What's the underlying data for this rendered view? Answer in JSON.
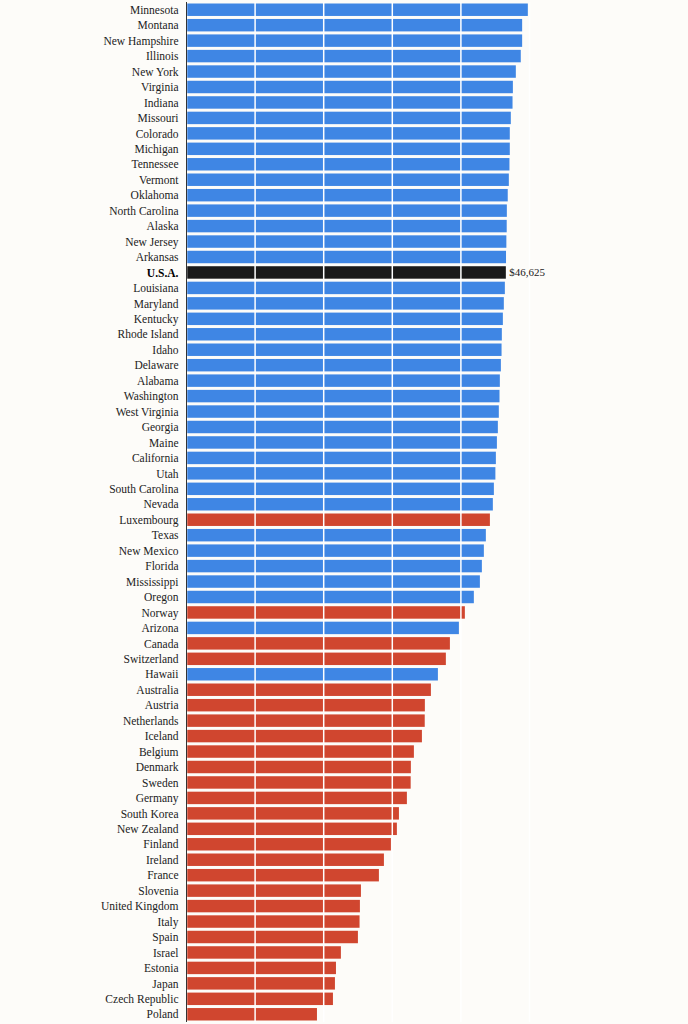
{
  "chart_data": {
    "type": "bar",
    "orientation": "horizontal",
    "categories": [
      "Minnesota",
      "Montana",
      "New Hampshire",
      "Illinois",
      "New York",
      "Virginia",
      "Indiana",
      "Missouri",
      "Colorado",
      "Michigan",
      "Tennessee",
      "Vermont",
      "Oklahoma",
      "North Carolina",
      "Alaska",
      "New Jersey",
      "Arkansas",
      "U.S.A.",
      "Louisiana",
      "Maryland",
      "Kentucky",
      "Rhode Island",
      "Idaho",
      "Delaware",
      "Alabama",
      "Washington",
      "West Virginia",
      "Georgia",
      "Maine",
      "California",
      "Utah",
      "South Carolina",
      "Nevada",
      "Luxembourg",
      "Texas",
      "New Mexico",
      "Florida",
      "Mississippi",
      "Oregon",
      "Norway",
      "Arizona",
      "Canada",
      "Switzerland",
      "Hawaii",
      "Australia",
      "Austria",
      "Netherlands",
      "Iceland",
      "Belgium",
      "Denmark",
      "Sweden",
      "Germany",
      "South Korea",
      "New Zealand",
      "Finland",
      "Ireland",
      "France",
      "Slovenia",
      "United Kingdom",
      "Italy",
      "Spain",
      "Israel",
      "Estonia",
      "Japan",
      "Czech Republic",
      "Poland"
    ],
    "values": [
      49830,
      49000,
      49000,
      48800,
      48080,
      47650,
      47600,
      47350,
      47200,
      47200,
      47150,
      47060,
      46900,
      46770,
      46750,
      46700,
      46650,
      46625,
      46480,
      46330,
      46190,
      46040,
      46000,
      45900,
      45750,
      45700,
      45600,
      45460,
      45320,
      45170,
      45100,
      44880,
      44730,
      44300,
      43710,
      43420,
      43130,
      42840,
      41960,
      40650,
      39780,
      38470,
      37880,
      36720,
      35700,
      34820,
      34800,
      34390,
      33220,
      32780,
      32750,
      32200,
      31040,
      30740,
      29870,
      28850,
      28120,
      25500,
      25350,
      25300,
      25060,
      22580,
      21860,
      21710,
      21420,
      19090
    ],
    "value_labels": [
      null,
      null,
      null,
      null,
      null,
      null,
      null,
      null,
      null,
      null,
      null,
      null,
      null,
      null,
      null,
      null,
      null,
      "$46,625",
      null,
      null,
      null,
      null,
      null,
      null,
      null,
      null,
      null,
      null,
      null,
      null,
      null,
      null,
      null,
      null,
      null,
      null,
      null,
      null,
      null,
      null,
      null,
      null,
      null,
      null,
      null,
      null,
      null,
      null,
      null,
      null,
      null,
      null,
      null,
      null,
      null,
      null,
      null,
      null,
      null,
      null,
      null,
      null,
      null,
      null,
      null,
      null
    ],
    "data_labels": true,
    "colors": [
      "#3f86e4",
      "#3f86e4",
      "#3f86e4",
      "#3f86e4",
      "#3f86e4",
      "#3f86e4",
      "#3f86e4",
      "#3f86e4",
      "#3f86e4",
      "#3f86e4",
      "#3f86e4",
      "#3f86e4",
      "#3f86e4",
      "#3f86e4",
      "#3f86e4",
      "#3f86e4",
      "#3f86e4",
      "#1a1a1a",
      "#3f86e4",
      "#3f86e4",
      "#3f86e4",
      "#3f86e4",
      "#3f86e4",
      "#3f86e4",
      "#3f86e4",
      "#3f86e4",
      "#3f86e4",
      "#3f86e4",
      "#3f86e4",
      "#3f86e4",
      "#3f86e4",
      "#3f86e4",
      "#3f86e4",
      "#d0462f",
      "#3f86e4",
      "#3f86e4",
      "#3f86e4",
      "#3f86e4",
      "#3f86e4",
      "#d0462f",
      "#3f86e4",
      "#d0462f",
      "#d0462f",
      "#3f86e4",
      "#d0462f",
      "#d0462f",
      "#d0462f",
      "#d0462f",
      "#d0462f",
      "#d0462f",
      "#d0462f",
      "#d0462f",
      "#d0462f",
      "#d0462f",
      "#d0462f",
      "#d0462f",
      "#d0462f",
      "#d0462f",
      "#d0462f",
      "#d0462f",
      "#d0462f",
      "#d0462f",
      "#d0462f",
      "#d0462f",
      "#d0462f",
      "#d0462f"
    ],
    "xlim": [
      0,
      50000
    ],
    "xticks": [
      0,
      10000,
      20000,
      30000,
      40000,
      50000
    ],
    "grid": true,
    "tick_labels": "y"
  }
}
